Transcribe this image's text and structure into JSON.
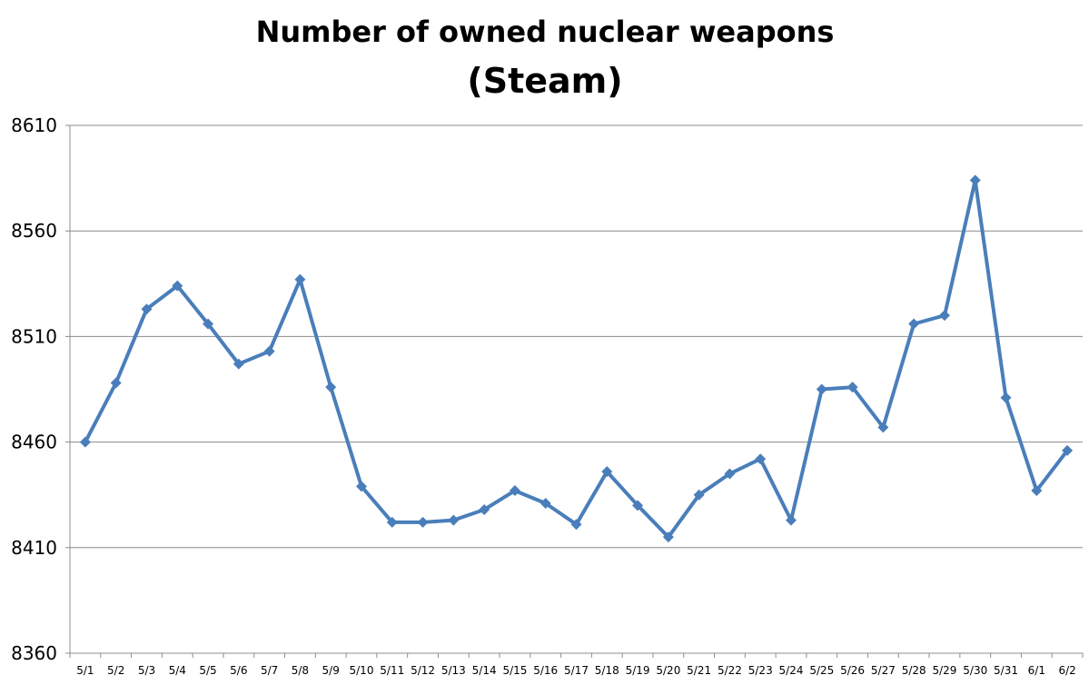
{
  "chart_data": {
    "type": "line",
    "title": "Number of owned nuclear weapons",
    "subtitle": "(Steam)",
    "xlabel": "",
    "ylabel": "",
    "ylim": [
      8360,
      8610
    ],
    "yticks": [
      8360,
      8410,
      8460,
      8510,
      8560,
      8610
    ],
    "grid": true,
    "legend": "none",
    "line_color": "#4a7ebb",
    "grid_color": "#8c8c8c",
    "categories": [
      "5/1",
      "5/2",
      "5/3",
      "5/4",
      "5/5",
      "5/6",
      "5/7",
      "5/8",
      "5/9",
      "5/10",
      "5/11",
      "5/12",
      "5/13",
      "5/14",
      "5/15",
      "5/16",
      "5/17",
      "5/18",
      "5/19",
      "5/20",
      "5/21",
      "5/22",
      "5/23",
      "5/24",
      "5/25",
      "5/26",
      "5/27",
      "5/28",
      "5/29",
      "5/30",
      "5/31",
      "6/1",
      "6/2"
    ],
    "series": [
      {
        "values": [
          8460,
          8488,
          8523,
          8534,
          8516,
          8497,
          8503,
          8537,
          8486,
          8439,
          8422,
          8422,
          8423,
          8428,
          8437,
          8431,
          8421,
          8446,
          8430,
          8415,
          8435,
          8445,
          8452,
          8423,
          8485,
          8486,
          8467,
          8516,
          8520,
          8584,
          8481,
          8437,
          8456
        ]
      }
    ]
  }
}
